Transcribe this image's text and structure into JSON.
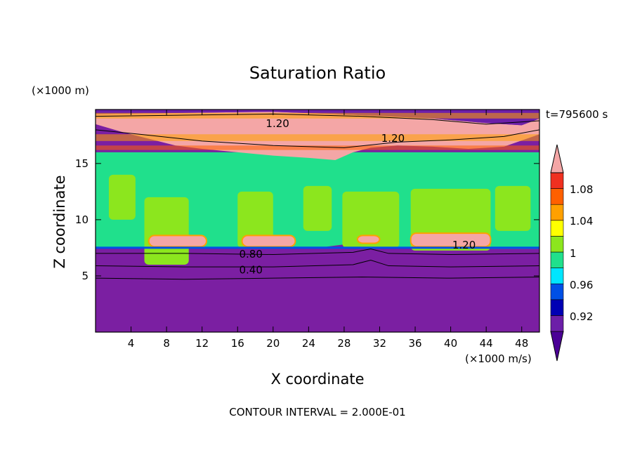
{
  "chart_data": {
    "type": "heatmap",
    "title": "Saturation Ratio",
    "xlabel": "X coordinate",
    "ylabel": "Z coordinate",
    "x_unit": "(×1000 m/s)",
    "y_unit": "(×1000 m)",
    "time_label": "t=795600 s",
    "footer": "CONTOUR INTERVAL = 2.000E-01",
    "xlim": [
      0,
      50
    ],
    "ylim": [
      0,
      19.8
    ],
    "x_ticks": [
      4,
      8,
      12,
      16,
      20,
      24,
      28,
      32,
      36,
      40,
      44,
      48
    ],
    "y_ticks": [
      5,
      10,
      15
    ],
    "grid": false,
    "colorbar": {
      "levels": [
        0.92,
        0.96,
        1,
        1.04,
        1.08
      ],
      "label_values": [
        "0.92",
        "0.96",
        "1",
        "1.04",
        "1.08"
      ],
      "colors": [
        "#4B0096",
        "#6C1FA8",
        "#0000B4",
        "#0050E6",
        "#00E6FF",
        "#20E08C",
        "#8CE61E",
        "#FFFF00",
        "#FFA000",
        "#FF6000",
        "#F03020",
        "#F4A6A6"
      ],
      "extend": "both"
    },
    "contour_labels": [
      {
        "text": "1.20",
        "x": 41.5,
        "z": 7.8
      },
      {
        "text": "0.80",
        "x": 17.5,
        "z": 7.0
      },
      {
        "text": "0.40",
        "x": 17.5,
        "z": 5.6
      },
      {
        "text": "1.20",
        "x": 20.5,
        "z": 18.6
      },
      {
        "text": "1.20",
        "x": 33.5,
        "z": 17.3
      }
    ]
  }
}
